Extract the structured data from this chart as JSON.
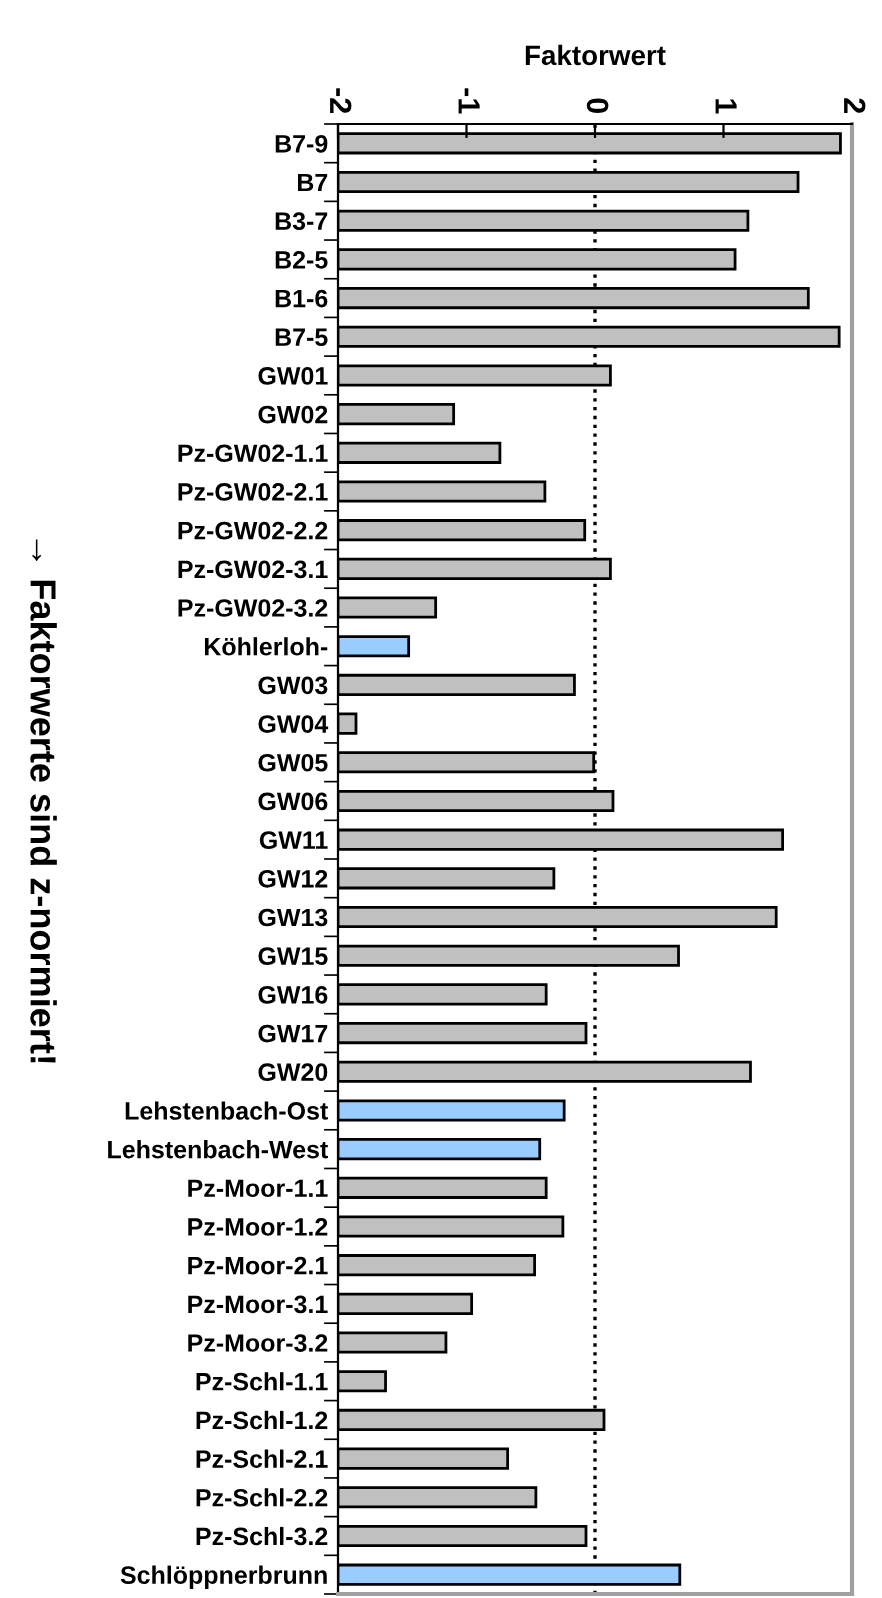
{
  "chart_data": {
    "type": "bar",
    "orientation": "horizontal",
    "xlabel": "Faktorwert",
    "categories": [
      "B7-9",
      "B7",
      "B3-7",
      "B2-5",
      "B1-6",
      "B7-5",
      "GW01",
      "GW02",
      "Pz-GW02-1.1",
      "Pz-GW02-2.1",
      "Pz-GW02-2.2",
      "Pz-GW02-3.1",
      "Pz-GW02-3.2",
      "Köhlerloh-",
      "GW03",
      "GW04",
      "GW05",
      "GW06",
      "GW11",
      "GW12",
      "GW13",
      "GW15",
      "GW16",
      "GW17",
      "GW20",
      "Lehstenbach-Ost",
      "Lehstenbach-West",
      "Pz-Moor-1.1",
      "Pz-Moor-1.2",
      "Pz-Moor-2.1",
      "Pz-Moor-3.1",
      "Pz-Moor-3.2",
      "Pz-Schl-1.1",
      "Pz-Schl-1.2",
      "Pz-Schl-2.1",
      "Pz-Schl-2.2",
      "Pz-Schl-3.2",
      "Schlöppnerbrunn"
    ],
    "base": [
      -2,
      -2,
      -2,
      -2,
      -2,
      -2,
      -2,
      -2,
      -2,
      -2,
      -2,
      -2,
      -2,
      -2,
      -2,
      -2,
      -2,
      -2,
      -2,
      -2,
      -2,
      -2,
      -2,
      -2,
      -2,
      -2,
      -2,
      -2,
      -2,
      -2,
      -2,
      -2,
      -2,
      -2,
      -2,
      -2,
      -2,
      -2
    ],
    "values": [
      3.91,
      3.58,
      3.19,
      3.09,
      3.66,
      3.9,
      2.12,
      0.9,
      1.26,
      1.61,
      1.92,
      2.12,
      0.76,
      0.55,
      1.84,
      0.14,
      1.99,
      2.14,
      3.46,
      1.68,
      3.41,
      2.65,
      1.62,
      1.93,
      3.21,
      1.76,
      1.57,
      1.62,
      1.75,
      1.53,
      1.04,
      0.84,
      0.37,
      2.07,
      1.32,
      1.54,
      1.93,
      2.66
    ],
    "colors": [
      "#c0c0c0",
      "#c0c0c0",
      "#c0c0c0",
      "#c0c0c0",
      "#c0c0c0",
      "#c0c0c0",
      "#c0c0c0",
      "#c0c0c0",
      "#c0c0c0",
      "#c0c0c0",
      "#c0c0c0",
      "#c0c0c0",
      "#c0c0c0",
      "#99ccff",
      "#c0c0c0",
      "#c0c0c0",
      "#c0c0c0",
      "#c0c0c0",
      "#c0c0c0",
      "#c0c0c0",
      "#c0c0c0",
      "#c0c0c0",
      "#c0c0c0",
      "#c0c0c0",
      "#c0c0c0",
      "#99ccff",
      "#99ccff",
      "#c0c0c0",
      "#c0c0c0",
      "#c0c0c0",
      "#c0c0c0",
      "#c0c0c0",
      "#c0c0c0",
      "#c0c0c0",
      "#c0c0c0",
      "#c0c0c0",
      "#c0c0c0",
      "#99ccff"
    ],
    "xlim": [
      -2,
      2
    ],
    "xticks": [
      {
        "value": -2,
        "label": "-2"
      },
      {
        "value": -1,
        "label": "-1"
      },
      0,
      1,
      2
    ],
    "ref_lines": [
      {
        "axis": "x",
        "value": 0,
        "label": null,
        "line_style": "dotted",
        "color": "#000000"
      }
    ],
    "annotations": [
      "→ Faktorwerte sind z-normiert!"
    ],
    "grid": false,
    "legend": false
  }
}
